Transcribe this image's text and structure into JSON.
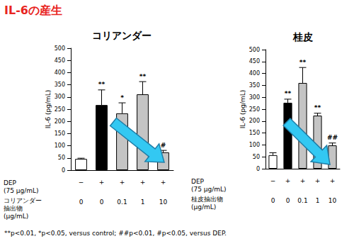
{
  "title": "IL-6の産生",
  "footnote": "**p<0.01, *p<0.05, versus control; ##p<0.01, #p<0.05, versus DEP.",
  "chart_data": [
    {
      "type": "bar",
      "title": "コリアンダー",
      "y_label": "IL-6 (pg/mL)",
      "categories": [
        null,
        null,
        null,
        null,
        null
      ],
      "values": [
        46,
        267,
        233,
        311,
        73
      ],
      "errors": [
        3,
        62,
        43,
        52,
        8
      ],
      "significance": [
        null,
        "**",
        "*",
        "**",
        "#"
      ],
      "colors": [
        "#ffffff",
        "#000000",
        "#c4c4c4",
        "#c4c4c4",
        "#c4c4c4"
      ],
      "ylim": [
        0,
        500
      ],
      "yticks": [
        0,
        50,
        100,
        150,
        200,
        250,
        300,
        350,
        400,
        450,
        500
      ],
      "table_rows": [
        {
          "label": "DEP\n(75 μg/mL)",
          "values": [
            "−",
            "+",
            "+",
            "+",
            "+"
          ]
        },
        {
          "label": "コリアンダー\n抽出物\n(μg/mL)",
          "values": [
            "0",
            "0",
            "0.1",
            "1",
            "10"
          ]
        }
      ]
    },
    {
      "type": "bar",
      "title": "桂皮",
      "y_label": "IL-6 (pg/mL)",
      "categories": [
        null,
        null,
        null,
        null,
        null
      ],
      "values": [
        57,
        277,
        360,
        223,
        98
      ],
      "errors": [
        10,
        15,
        65,
        10,
        10
      ],
      "significance": [
        null,
        "**",
        "**",
        "**",
        "##"
      ],
      "colors": [
        "#ffffff",
        "#000000",
        "#c4c4c4",
        "#c4c4c4",
        "#c4c4c4"
      ],
      "ylim": [
        0,
        500
      ],
      "yticks": [
        0,
        50,
        100,
        150,
        200,
        250,
        300,
        350,
        400,
        450,
        500
      ],
      "table_rows": [
        {
          "label": "DEP\n(75 μg/mL)",
          "values": [
            "−",
            "+",
            "+",
            "+",
            "+"
          ]
        },
        {
          "label": "桂皮抽出物\n(μg/mL)",
          "values": [
            "0",
            "0",
            "0.1",
            "1",
            "10"
          ]
        }
      ]
    }
  ]
}
